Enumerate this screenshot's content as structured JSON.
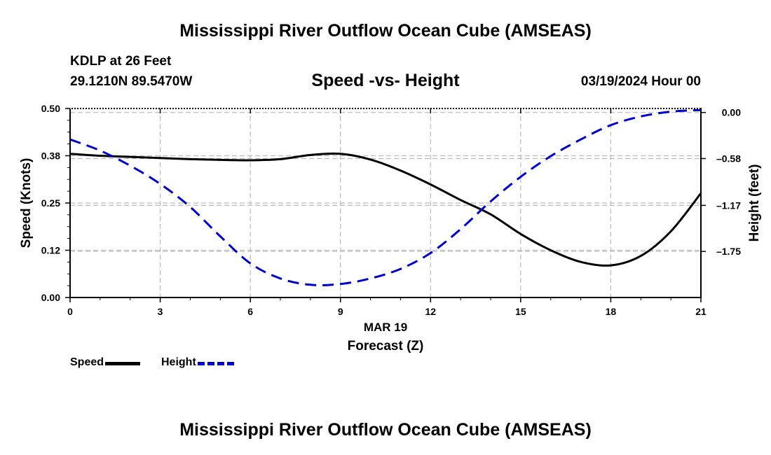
{
  "page": {
    "title_top": "Mississippi River Outflow Ocean Cube (AMSEAS)",
    "title_bottom": "Mississippi River Outflow Ocean Cube (AMSEAS)",
    "station": "KDLP at 26 Feet",
    "coords": "29.1210N  89.5470W",
    "subtitle": "Speed -vs- Height",
    "datetime": "03/19/2024 Hour 00"
  },
  "legend": {
    "speed_label": "Speed",
    "height_label": "Height"
  },
  "colors": {
    "speed": "#000000",
    "height": "#0000cc",
    "grid": "#bbbbbb"
  },
  "chart_data": {
    "type": "line",
    "title": "Speed -vs- Height",
    "xlabel": "Forecast (Z)",
    "xlabel_date": "MAR 19",
    "x_range": [
      0,
      21
    ],
    "x_ticks": [
      0,
      3,
      6,
      9,
      12,
      15,
      18,
      21
    ],
    "x_tick_labels": [
      "0",
      "3",
      "6",
      "9",
      "12",
      "15",
      "18",
      "21"
    ],
    "y_left": {
      "label": "Speed (Knots)",
      "range": [
        0,
        0.5
      ],
      "ticks": [
        0,
        0.125,
        0.25,
        0.375,
        0.5
      ],
      "tick_labels": [
        "0.00",
        "0.12",
        "0.25",
        "0.38",
        "0.50"
      ]
    },
    "y_right": {
      "label": "Height (feet)",
      "range": [
        -2.33,
        0.05
      ],
      "ticks": [
        0.0,
        -0.58,
        -1.17,
        -1.75
      ],
      "tick_labels": [
        "0.00",
        "–0.58",
        "–1.17",
        "–1.75"
      ]
    },
    "series": [
      {
        "name": "Speed",
        "axis": "left",
        "style": "solid",
        "x": [
          0,
          1,
          2,
          3,
          4,
          5,
          6,
          7,
          8,
          9,
          10,
          11,
          12,
          13,
          14,
          15,
          16,
          17,
          18,
          19,
          20,
          21
        ],
        "values": [
          0.38,
          0.375,
          0.372,
          0.369,
          0.366,
          0.364,
          0.363,
          0.366,
          0.377,
          0.38,
          0.365,
          0.336,
          0.299,
          0.258,
          0.22,
          0.168,
          0.125,
          0.094,
          0.085,
          0.11,
          0.175,
          0.276
        ]
      },
      {
        "name": "Height",
        "axis": "right",
        "style": "dashed",
        "x": [
          0,
          1,
          2,
          3,
          4,
          5,
          6,
          7,
          8,
          9,
          10,
          11,
          12,
          13,
          14,
          15,
          16,
          17,
          18,
          19,
          20,
          21
        ],
        "values": [
          -0.34,
          -0.48,
          -0.67,
          -0.9,
          -1.19,
          -1.56,
          -1.9,
          -2.09,
          -2.17,
          -2.16,
          -2.09,
          -1.97,
          -1.77,
          -1.47,
          -1.12,
          -0.81,
          -0.55,
          -0.34,
          -0.16,
          -0.05,
          0.01,
          0.03
        ]
      }
    ]
  }
}
